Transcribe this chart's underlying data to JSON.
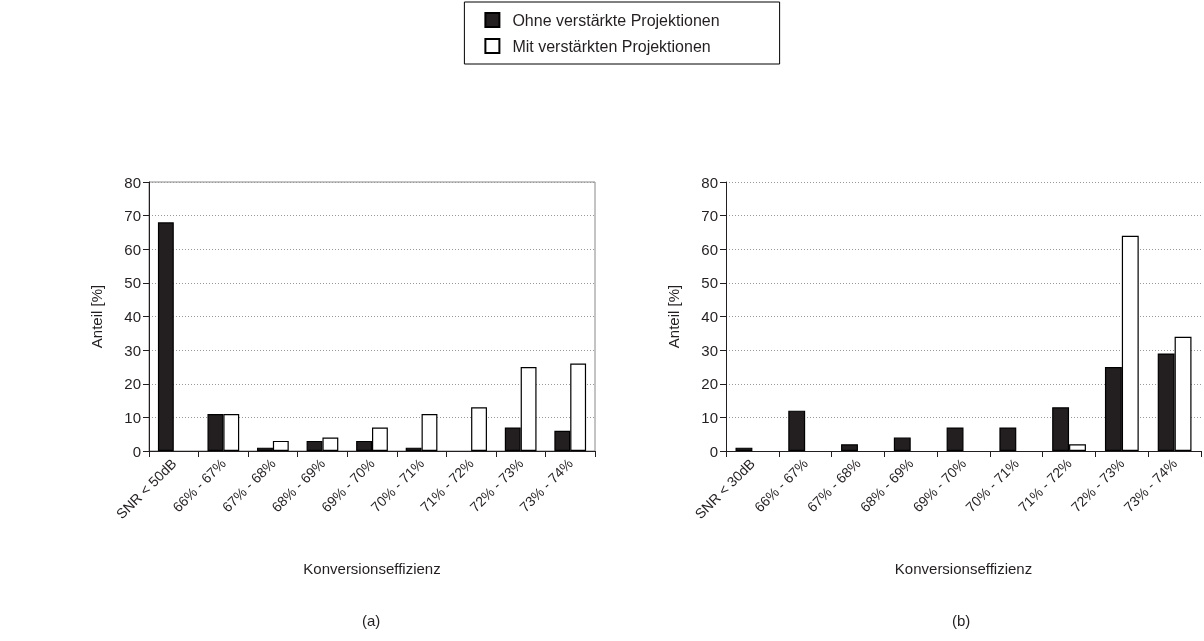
{
  "chart_data": [
    {
      "type": "bar",
      "xlabel": "Konversionseffizienz",
      "ylabel": "Anteil [%]",
      "categories": [
        "SNR < 50dB",
        "66% - 67%",
        "67% - 68%",
        "68% - 69%",
        "69% - 70%",
        "70% - 71%",
        "71% - 72%",
        "72% - 73%",
        "73% - 74%"
      ],
      "series": [
        {
          "name": "Ohne verstärkte Projektionen",
          "color": "#231f20",
          "values": [
            68,
            11,
            1,
            3,
            3,
            1,
            null,
            7,
            6
          ]
        },
        {
          "name": "Mit verstärkten Projektionen",
          "color": "#ffffff",
          "values": [
            null,
            11,
            3,
            4,
            7,
            11,
            13,
            25,
            26
          ]
        }
      ],
      "ylim": [
        0,
        80
      ],
      "yticks": [
        0,
        10,
        20,
        30,
        40,
        50,
        60,
        70,
        80
      ],
      "grid": "y",
      "legend": "top",
      "annotations": [
        "(a)"
      ]
    },
    {
      "type": "bar",
      "xlabel": "Konversionseffizienz",
      "ylabel": "Anteil [%]",
      "categories": [
        "SNR < 30dB",
        "66% - 67%",
        "67% - 68%",
        "68% - 69%",
        "69% - 70%",
        "70% - 71%",
        "71% - 72%",
        "72% - 73%",
        "73% - 74%"
      ],
      "series": [
        {
          "color": "#231f20",
          "values": [
            1,
            12,
            2,
            4,
            7,
            7,
            13,
            25,
            29
          ]
        },
        {
          "color": "#ffffff",
          "values": [
            null,
            null,
            null,
            null,
            null,
            null,
            2,
            64,
            34
          ]
        }
      ],
      "ylim": [
        0,
        80
      ],
      "yticks": [
        0,
        10,
        20,
        30,
        40,
        50,
        60,
        70,
        80
      ],
      "grid": "y",
      "annotations": [
        "(b)"
      ]
    }
  ]
}
